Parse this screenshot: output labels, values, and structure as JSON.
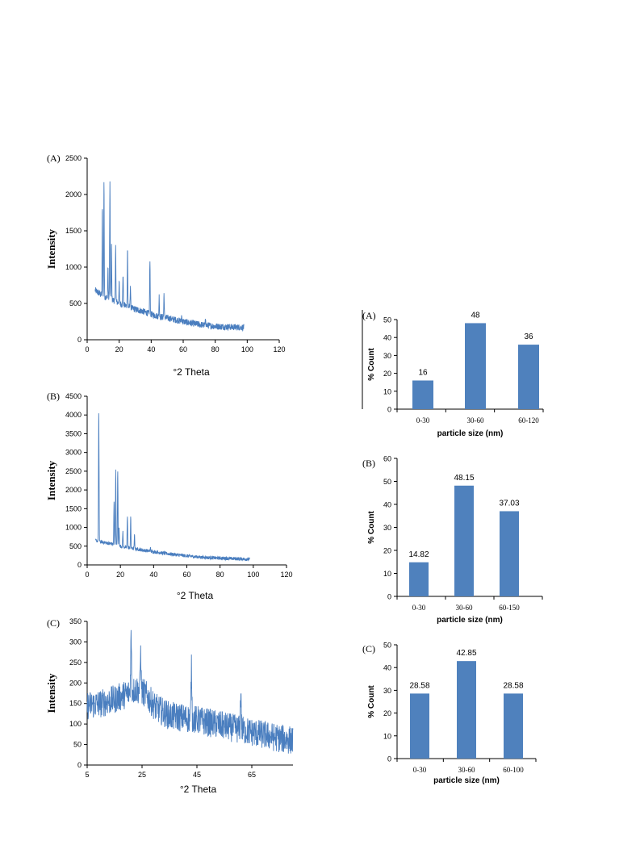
{
  "chart_data": [
    {
      "type": "line",
      "panel_label": "(A)",
      "ylabel": "Intensity",
      "xlabel": "°2 Theta",
      "xlim": [
        0,
        120
      ],
      "ylim": [
        0,
        2500
      ],
      "xticks": [
        0,
        20,
        40,
        60,
        80,
        100,
        120
      ],
      "yticks": [
        0,
        500,
        1000,
        1500,
        2000,
        2500
      ],
      "color": "#4a7ebf",
      "x_range": [
        5,
        98
      ],
      "baseline": [
        [
          5,
          680
        ],
        [
          10,
          600
        ],
        [
          15,
          560
        ],
        [
          20,
          500
        ],
        [
          25,
          460
        ],
        [
          30,
          420
        ],
        [
          35,
          390
        ],
        [
          40,
          350
        ],
        [
          45,
          320
        ],
        [
          50,
          300
        ],
        [
          60,
          250
        ],
        [
          70,
          210
        ],
        [
          80,
          185
        ],
        [
          90,
          175
        ],
        [
          98,
          170
        ]
      ],
      "noise": 45,
      "peaks": [
        [
          9.5,
          1850
        ],
        [
          10.5,
          2210
        ],
        [
          13,
          1000
        ],
        [
          14.2,
          2190
        ],
        [
          15.2,
          1300
        ],
        [
          17.8,
          1330
        ],
        [
          20,
          800
        ],
        [
          22.4,
          900
        ],
        [
          25.2,
          1270
        ],
        [
          27,
          750
        ],
        [
          39.2,
          1080
        ],
        [
          45,
          600
        ],
        [
          48,
          640
        ],
        [
          59,
          330
        ],
        [
          74,
          300
        ]
      ]
    },
    {
      "type": "line",
      "panel_label": "(B)",
      "ylabel": "Intensity",
      "xlabel": "°2 Theta",
      "xlim": [
        0,
        120
      ],
      "ylim": [
        0,
        4500
      ],
      "xticks": [
        0,
        20,
        40,
        60,
        80,
        100,
        120
      ],
      "yticks": [
        0,
        500,
        1000,
        1500,
        2000,
        2500,
        3000,
        3500,
        4000,
        4500
      ],
      "color": "#4a7ebf",
      "x_range": [
        5,
        98
      ],
      "baseline": [
        [
          5,
          650
        ],
        [
          10,
          600
        ],
        [
          15,
          560
        ],
        [
          20,
          500
        ],
        [
          25,
          450
        ],
        [
          30,
          420
        ],
        [
          40,
          350
        ],
        [
          50,
          290
        ],
        [
          60,
          240
        ],
        [
          70,
          200
        ],
        [
          80,
          180
        ],
        [
          90,
          165
        ],
        [
          98,
          150
        ]
      ],
      "noise": 45,
      "peaks": [
        [
          7,
          4100
        ],
        [
          16.2,
          1700
        ],
        [
          17.2,
          2570
        ],
        [
          18.4,
          2500
        ],
        [
          19.2,
          1000
        ],
        [
          21.5,
          900
        ],
        [
          24.2,
          1270
        ],
        [
          26.2,
          1280
        ],
        [
          28.5,
          800
        ],
        [
          38,
          450
        ]
      ]
    },
    {
      "type": "line",
      "panel_label": "(C)",
      "ylabel": "Intensity",
      "xlabel": "°2 Theta",
      "xlim": [
        5,
        80
      ],
      "ylim": [
        0,
        350
      ],
      "xticks": [
        5,
        25,
        45,
        65
      ],
      "yticks": [
        0,
        50,
        100,
        150,
        200,
        250,
        300,
        350
      ],
      "color": "#4a7ebf",
      "x_range": [
        5,
        80
      ],
      "baseline": [
        [
          5,
          145
        ],
        [
          10,
          150
        ],
        [
          15,
          160
        ],
        [
          20,
          175
        ],
        [
          23,
          185
        ],
        [
          26,
          175
        ],
        [
          30,
          140
        ],
        [
          35,
          120
        ],
        [
          45,
          110
        ],
        [
          55,
          95
        ],
        [
          65,
          80
        ],
        [
          75,
          65
        ],
        [
          80,
          60
        ]
      ],
      "noise": 35,
      "peaks": [
        [
          21,
          310
        ],
        [
          24.5,
          275
        ],
        [
          43,
          235
        ],
        [
          61,
          180
        ]
      ]
    },
    {
      "type": "bar",
      "panel_label": "(A)",
      "categories": [
        "0-30",
        "30-60",
        "60-120"
      ],
      "values": [
        16,
        48,
        36
      ],
      "value_labels": [
        "16",
        "48",
        "36"
      ],
      "xlabel": "particle size (nm)",
      "ylabel": "% Count",
      "ylim": [
        0,
        50
      ],
      "yticks": [
        0,
        10,
        20,
        30,
        40,
        50
      ],
      "color": "#4f81bd"
    },
    {
      "type": "bar",
      "panel_label": "(B)",
      "categories": [
        "0-30",
        "30-60",
        "60-150"
      ],
      "values": [
        14.82,
        48.15,
        37.03
      ],
      "value_labels": [
        "14.82",
        "48.15",
        "37.03"
      ],
      "xlabel": "particle size (nm)",
      "ylabel": "% Count",
      "ylim": [
        0,
        60
      ],
      "yticks": [
        0,
        10,
        20,
        30,
        40,
        50,
        60
      ],
      "color": "#4f81bd"
    },
    {
      "type": "bar",
      "panel_label": "(C)",
      "categories": [
        "0-30",
        "30-60",
        "60-100"
      ],
      "values": [
        28.58,
        42.85,
        28.58
      ],
      "value_labels": [
        "28.58",
        "42.85",
        "28.58"
      ],
      "xlabel": "particle size (nm)",
      "ylabel": "% Count",
      "ylim": [
        0,
        50
      ],
      "yticks": [
        0,
        10,
        20,
        30,
        40,
        50
      ],
      "color": "#4f81bd"
    }
  ]
}
